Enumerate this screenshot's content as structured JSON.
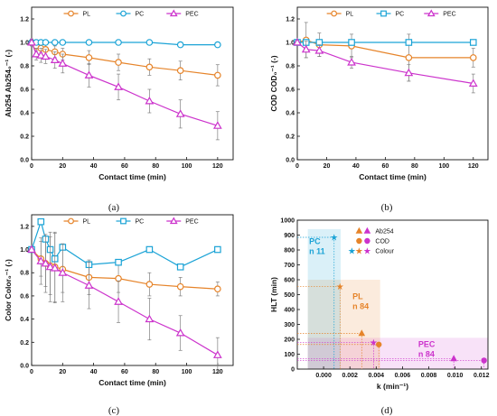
{
  "colors": {
    "PL": "#E6842A",
    "PC": "#1BA3D6",
    "PEC": "#CC33CC",
    "axis": "#111111",
    "err": "#7f7f7f"
  },
  "chart_data": [
    {
      "id": "a",
      "type": "line",
      "caption": "(a)",
      "xlabel": "Contact time (min)",
      "ylabel": "Ab254 Ab254₀⁻¹ (-)",
      "xlim": [
        0,
        130
      ],
      "ylim": [
        0,
        1.3
      ],
      "xticks": [
        0,
        20,
        40,
        60,
        80,
        100,
        120
      ],
      "yticks": [
        0.0,
        0.2,
        0.4,
        0.6,
        0.8,
        1.0,
        1.2
      ],
      "legend_position": "top",
      "series": [
        {
          "name": "PL",
          "color_key": "PL",
          "marker": "circle",
          "x": [
            0,
            3,
            6,
            9,
            15,
            20,
            37,
            56,
            76,
            96,
            120
          ],
          "y": [
            1.0,
            0.97,
            0.95,
            0.94,
            0.92,
            0.9,
            0.87,
            0.83,
            0.79,
            0.76,
            0.72
          ],
          "err": [
            0.03,
            0.04,
            0.04,
            0.05,
            0.05,
            0.05,
            0.06,
            0.07,
            0.07,
            0.08,
            0.09
          ]
        },
        {
          "name": "PC",
          "color_key": "PC",
          "marker": "circle",
          "x": [
            0,
            3,
            6,
            9,
            15,
            20,
            37,
            56,
            76,
            96,
            120
          ],
          "y": [
            1.0,
            1.0,
            1.0,
            1.0,
            1.0,
            1.0,
            1.0,
            1.0,
            1.0,
            0.98,
            0.98
          ],
          "err": [
            0,
            0,
            0,
            0,
            0,
            0,
            0,
            0,
            0,
            0,
            0
          ]
        },
        {
          "name": "PEC",
          "color_key": "PEC",
          "marker": "triangle",
          "x": [
            0,
            3,
            6,
            9,
            15,
            20,
            37,
            56,
            76,
            96,
            120
          ],
          "y": [
            1.0,
            0.9,
            0.89,
            0.88,
            0.85,
            0.82,
            0.72,
            0.62,
            0.5,
            0.39,
            0.29
          ],
          "err": [
            0.02,
            0.05,
            0.06,
            0.06,
            0.07,
            0.08,
            0.1,
            0.11,
            0.1,
            0.12,
            0.12
          ]
        }
      ]
    },
    {
      "id": "b",
      "type": "line",
      "caption": "(b)",
      "xlabel": "Contact time (min)",
      "ylabel": "COD COD₀⁻¹ (-)",
      "xlim": [
        0,
        130
      ],
      "ylim": [
        0,
        1.3
      ],
      "xticks": [
        0,
        20,
        40,
        60,
        80,
        100,
        120
      ],
      "yticks": [
        0.0,
        0.2,
        0.4,
        0.6,
        0.8,
        1.0,
        1.2
      ],
      "legend_position": "top",
      "series": [
        {
          "name": "PL",
          "color_key": "PL",
          "marker": "circle",
          "x": [
            0,
            6,
            15,
            37,
            76,
            120
          ],
          "y": [
            1.0,
            1.02,
            0.98,
            0.97,
            0.87,
            0.87
          ],
          "err": [
            0.02,
            0.15,
            0.1,
            0.1,
            0.2,
            0.08
          ]
        },
        {
          "name": "PC",
          "color_key": "PC",
          "marker": "square",
          "x": [
            0,
            6,
            15,
            37,
            76,
            120
          ],
          "y": [
            1.0,
            1.0,
            1.0,
            1.0,
            1.0,
            1.0
          ],
          "err": [
            0,
            0,
            0,
            0,
            0,
            0
          ]
        },
        {
          "name": "PEC",
          "color_key": "PEC",
          "marker": "triangle",
          "x": [
            0,
            6,
            15,
            37,
            76,
            120
          ],
          "y": [
            1.0,
            0.94,
            0.93,
            0.83,
            0.74,
            0.65
          ],
          "err": [
            0.02,
            0.07,
            0.05,
            0.05,
            0.07,
            0.08
          ]
        }
      ]
    },
    {
      "id": "c",
      "type": "line",
      "caption": "(c)",
      "xlabel": "Contact time (min)",
      "ylabel": "Color Color₀⁻¹ (-)",
      "xlim": [
        0,
        130
      ],
      "ylim": [
        0,
        1.3
      ],
      "xticks": [
        0,
        20,
        40,
        60,
        80,
        100,
        120
      ],
      "yticks": [
        0.0,
        0.2,
        0.4,
        0.6,
        0.8,
        1.0,
        1.2
      ],
      "legend_position": "top",
      "series": [
        {
          "name": "PL",
          "color_key": "PL",
          "marker": "circle",
          "x": [
            0,
            6,
            9,
            12,
            15,
            20,
            37,
            56,
            76,
            96,
            120
          ],
          "y": [
            1.0,
            0.92,
            0.88,
            0.86,
            0.85,
            0.83,
            0.76,
            0.75,
            0.7,
            0.68,
            0.66
          ],
          "err": [
            0.02,
            0.15,
            0.2,
            0.25,
            0.3,
            0.2,
            0.15,
            0.12,
            0.1,
            0.08,
            0.06
          ]
        },
        {
          "name": "PC",
          "color_key": "PC",
          "marker": "square",
          "x": [
            0,
            6,
            9,
            12,
            15,
            20,
            37,
            56,
            76,
            96,
            120
          ],
          "y": [
            1.0,
            1.24,
            1.09,
            1.0,
            0.92,
            1.02,
            0.87,
            0.89,
            1.0,
            0.85,
            1.0
          ],
          "err": [
            0,
            0,
            0,
            0,
            0,
            0,
            0,
            0,
            0,
            0,
            0
          ]
        },
        {
          "name": "PEC",
          "color_key": "PEC",
          "marker": "triangle",
          "x": [
            0,
            6,
            9,
            12,
            15,
            20,
            37,
            56,
            76,
            96,
            120
          ],
          "y": [
            1.0,
            0.9,
            0.88,
            0.85,
            0.84,
            0.8,
            0.69,
            0.55,
            0.4,
            0.28,
            0.09
          ],
          "err": [
            0.02,
            0.2,
            0.25,
            0.3,
            0.3,
            0.25,
            0.2,
            0.18,
            0.18,
            0.15,
            0.15
          ]
        }
      ]
    },
    {
      "id": "d",
      "type": "scatter",
      "caption": "(d)",
      "xlabel": "k (min⁻¹)",
      "ylabel": "HLT (min)",
      "xlim": [
        -0.002,
        0.0125
      ],
      "ylim": [
        0,
        1000
      ],
      "xticks": [
        0.0,
        0.002,
        0.004,
        0.006,
        0.008,
        0.01,
        0.012
      ],
      "xtick_labels": [
        "0.000",
        "0.002",
        "0.004",
        "0.006",
        "0.008",
        "0.010",
        "0.012"
      ],
      "yticks": [
        0,
        100,
        200,
        300,
        400,
        500,
        600,
        700,
        800,
        900,
        1000
      ],
      "legend_position": "top-left",
      "legend": [
        {
          "label": "Ab254",
          "marker": "triangle"
        },
        {
          "label": "COD",
          "marker": "circle"
        },
        {
          "label": "Colour",
          "marker": "star"
        }
      ],
      "regions": [
        {
          "name": "PC",
          "label_line1": "PC",
          "label_line2": "n 11",
          "color_key": "PC",
          "x": [
            -0.0012,
            0.0013
          ],
          "y": [
            0,
            940
          ]
        },
        {
          "name": "PL",
          "label_line1": "PL",
          "label_line2": "n 84",
          "color_key": "PL",
          "x": [
            -0.0012,
            0.0043
          ],
          "y": [
            0,
            600
          ]
        },
        {
          "name": "PEC",
          "label_line1": "PEC",
          "label_line2": "n 84",
          "color_key": "PEC",
          "x": [
            -0.0012,
            0.0125
          ],
          "y": [
            0,
            210
          ]
        }
      ],
      "points": [
        {
          "group": "PC",
          "marker": "star",
          "k": 0.0008,
          "hlt": 885
        },
        {
          "group": "PL",
          "marker": "star",
          "k": 0.00125,
          "hlt": 555
        },
        {
          "group": "PL",
          "marker": "triangle",
          "k": 0.0029,
          "hlt": 240
        },
        {
          "group": "PEC",
          "marker": "star",
          "k": 0.0038,
          "hlt": 180
        },
        {
          "group": "PL",
          "marker": "circle",
          "k": 0.0042,
          "hlt": 165
        },
        {
          "group": "PEC",
          "marker": "triangle",
          "k": 0.0099,
          "hlt": 70
        },
        {
          "group": "PEC",
          "marker": "circle",
          "k": 0.0122,
          "hlt": 58
        }
      ]
    }
  ]
}
